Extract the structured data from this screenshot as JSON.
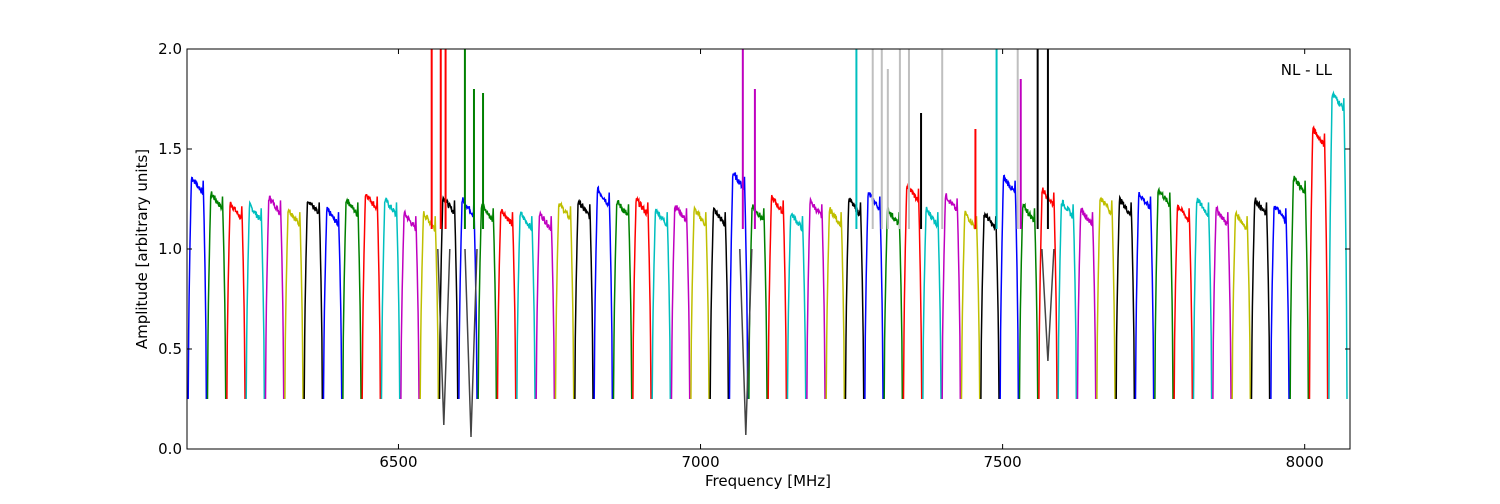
{
  "chart_data": {
    "type": "line",
    "xlabel": "Frequency [MHz]",
    "ylabel": "Amplitude [arbitrary units]",
    "annotation": "NL - LL",
    "xlim": [
      6150,
      8075
    ],
    "ylim": [
      0.0,
      2.0
    ],
    "x_ticks": [
      6500,
      7000,
      7500,
      8000
    ],
    "y_ticks": [
      0.0,
      0.5,
      1.0,
      1.5,
      2.0
    ],
    "x_tick_labels": [
      "6500",
      "7000",
      "7500",
      "8000"
    ],
    "y_tick_labels": [
      "0.0",
      "0.5",
      "1.0",
      "1.5",
      "2.0"
    ],
    "grid": false,
    "channel_width_mhz": 32,
    "first_channel_start_mhz": 6152,
    "color_cycle": [
      "#0000ff",
      "#008000",
      "#ff0000",
      "#00bfbf",
      "#bf00bf",
      "#bfbf00",
      "#000000"
    ],
    "background_trace_color": "#bfbfbf",
    "channel_peaks": [
      1.36,
      1.28,
      1.23,
      1.22,
      1.26,
      1.2,
      1.25,
      1.2,
      1.25,
      1.28,
      1.25,
      1.18,
      1.18,
      1.26,
      1.25,
      1.22,
      1.2,
      1.18,
      1.18,
      1.23,
      1.24,
      1.3,
      1.24,
      1.25,
      1.2,
      1.22,
      1.2,
      1.2,
      1.38,
      1.22,
      1.26,
      1.18,
      1.24,
      1.2,
      1.25,
      1.28,
      1.2,
      1.32,
      1.2,
      1.27,
      1.18,
      1.18,
      1.36,
      1.22,
      1.3,
      1.24,
      1.2,
      1.26,
      1.25,
      1.28,
      1.3,
      1.22,
      1.25,
      1.2,
      1.18,
      1.25,
      1.22,
      1.36,
      1.6,
      1.78
    ],
    "interference_spikes": [
      {
        "x": 6555,
        "y": 2.0,
        "color": "#ff0000"
      },
      {
        "x": 6570,
        "y": 2.0,
        "color": "#ff0000"
      },
      {
        "x": 6578,
        "y": 2.0,
        "color": "#ff0000"
      },
      {
        "x": 6610,
        "y": 2.0,
        "color": "#008000"
      },
      {
        "x": 6625,
        "y": 1.8,
        "color": "#008000"
      },
      {
        "x": 6640,
        "y": 1.78,
        "color": "#008000"
      },
      {
        "x": 7070,
        "y": 2.0,
        "color": "#bf00bf"
      },
      {
        "x": 7090,
        "y": 1.8,
        "color": "#bf00bf"
      },
      {
        "x": 7258,
        "y": 2.0,
        "color": "#00bfbf"
      },
      {
        "x": 7285,
        "y": 2.0,
        "color": "#bfbfbf"
      },
      {
        "x": 7300,
        "y": 2.0,
        "color": "#bfbfbf"
      },
      {
        "x": 7310,
        "y": 1.9,
        "color": "#bfbfbf"
      },
      {
        "x": 7330,
        "y": 2.0,
        "color": "#bfbfbf"
      },
      {
        "x": 7345,
        "y": 2.0,
        "color": "#bfbfbf"
      },
      {
        "x": 7365,
        "y": 1.68,
        "color": "#000000"
      },
      {
        "x": 7400,
        "y": 2.0,
        "color": "#bfbfbf"
      },
      {
        "x": 7455,
        "y": 1.6,
        "color": "#ff0000"
      },
      {
        "x": 7490,
        "y": 2.0,
        "color": "#00bfbf"
      },
      {
        "x": 7525,
        "y": 2.0,
        "color": "#bfbfbf"
      },
      {
        "x": 7530,
        "y": 1.85,
        "color": "#bf00bf"
      },
      {
        "x": 7558,
        "y": 2.0,
        "color": "#000000"
      },
      {
        "x": 7575,
        "y": 2.0,
        "color": "#000000"
      }
    ],
    "deep_dips": [
      {
        "x": 6575,
        "y": 0.12
      },
      {
        "x": 6620,
        "y": 0.06
      },
      {
        "x": 7075,
        "y": 0.07
      },
      {
        "x": 7575,
        "y": 0.44
      }
    ]
  }
}
